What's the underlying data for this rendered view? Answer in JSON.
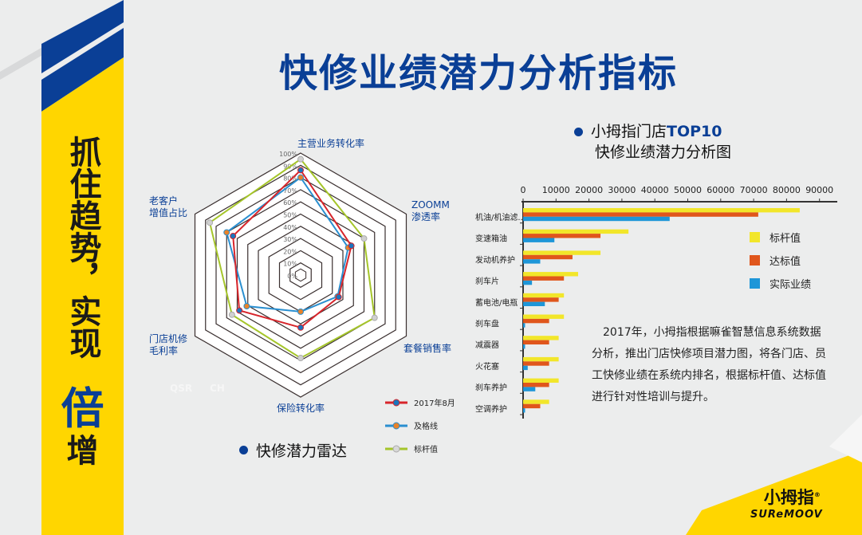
{
  "title": "快修业绩潜力分析指标",
  "banner": {
    "line1": "抓住趋势，实现",
    "highlight": "倍",
    "end": "增",
    "colors": {
      "yellow": "#ffd600",
      "blue": "#0a3f96"
    }
  },
  "radar": {
    "section_title": "快修潜力雷达",
    "axes": [
      "主营业务转化率",
      "ZOOMM渗透率",
      "套餐销售率",
      "保险转化率",
      "门店机修毛利率",
      "老客户增值占比"
    ],
    "axis_labels": {
      "a0": "主营业务转化率",
      "a1_1": "ZOOMM",
      "a1_2": "渗透率",
      "a2": "套餐销售率",
      "a3": "保险转化率",
      "a4_1": "门店机修",
      "a4_2": "毛利率",
      "a5_1": "老客户",
      "a5_2": "增值占比"
    },
    "ticks": [
      "0%",
      "10%",
      "20%",
      "30%",
      "40%",
      "50%",
      "60%",
      "70%",
      "80%",
      "90%",
      "100%"
    ],
    "faint_labels": [
      "QSR",
      "CH"
    ],
    "series": [
      {
        "name": "2017年8月",
        "line": "#d7252b",
        "marker": "#1b75bc",
        "values": [
          86,
          48,
          36,
          43,
          58,
          64
        ]
      },
      {
        "name": "及格线",
        "line": "#2a8fd0",
        "marker": "#e8822a",
        "values": [
          80,
          45,
          35,
          30,
          51,
          70
        ]
      },
      {
        "name": "标杆值",
        "line": "#a5c52a",
        "marker": "#d0d0d0",
        "values": [
          95,
          60,
          70,
          68,
          65,
          86
        ]
      }
    ]
  },
  "chart_data": {
    "type": "bar",
    "title": "小拇指门店TOP10\n快修业绩潜力分析图",
    "title_line1_a": "小拇指门店",
    "title_line1_b": "TOP10",
    "title_line2": "快修业绩潜力分析图",
    "categories": [
      "机油/机油滤...",
      "变速箱油",
      "发动机养护",
      "刹车片",
      "蓄电池/电瓶",
      "刹车盘",
      "减震器",
      "火花塞",
      "刹车养护",
      "空调养护"
    ],
    "xlim": [
      0,
      90000
    ],
    "ticks": [
      "0",
      "10000",
      "20000",
      "30000",
      "40000",
      "50000",
      "60000",
      "70000",
      "80000",
      "90000"
    ],
    "legend": "right",
    "series": [
      {
        "name": "标杆值",
        "color": "#f2e62a",
        "values": [
          84000,
          32000,
          23500,
          16700,
          12400,
          12400,
          10800,
          10800,
          10800,
          7900
        ]
      },
      {
        "name": "达标值",
        "color": "#e0561c",
        "values": [
          71400,
          23500,
          15000,
          12400,
          10800,
          7900,
          7900,
          7900,
          7900,
          5200
        ]
      },
      {
        "name": "实际业绩",
        "color": "#1e96d8",
        "values": [
          44500,
          9500,
          5200,
          2700,
          6600,
          600,
          600,
          1400,
          3700,
          600
        ]
      }
    ]
  },
  "paragraph": "2017年，小拇指根据嘛雀智慧信息系统数据分析，推出门店快修项目潜力图，将各门店、员工快修业绩在系统内排名，根据标杆值、达标值进行针对性培训与提升。",
  "logo": {
    "cn": "小拇指",
    "en": "SUReMOOV",
    "reg": "®"
  }
}
